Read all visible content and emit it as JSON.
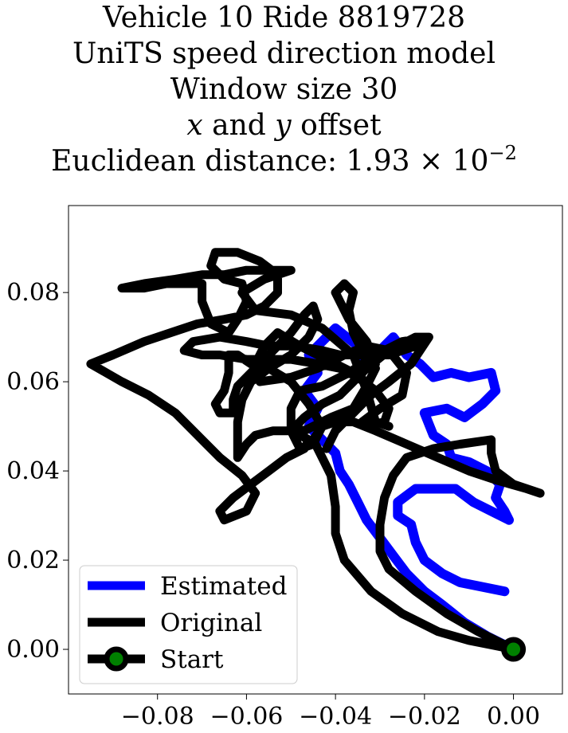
{
  "title": {
    "line1": "Vehicle 10 Ride 8819728",
    "line2": "UniTS speed direction model",
    "line3": "Window size 30",
    "line4_x": "x",
    "line4_and": " and ",
    "line4_y": "y",
    "line4_rest": " offset",
    "line5_prefix": "Euclidean distance: 1.93",
    "line5_times": " × 10",
    "line5_exp": "−2"
  },
  "chart_data": {
    "type": "line",
    "xlim": [
      -0.1,
      0.011
    ],
    "ylim": [
      -0.01,
      0.0995
    ],
    "xticks": [
      -0.08,
      -0.06,
      -0.04,
      -0.02,
      0.0
    ],
    "xtick_labels": [
      "−0.08",
      "−0.06",
      "−0.04",
      "−0.02",
      "0.00"
    ],
    "yticks": [
      0.0,
      0.02,
      0.04,
      0.06,
      0.08
    ],
    "ytick_labels": [
      "0.00",
      "0.02",
      "0.04",
      "0.06",
      "0.08"
    ],
    "grid": false,
    "legend_position": "lower-left",
    "legend": [
      "Estimated",
      "Original",
      "Start"
    ],
    "series": [
      {
        "name": "Estimated",
        "color": "#0000ff",
        "points": [
          [
            0.0,
            0.0
          ],
          [
            -0.006,
            0.003
          ],
          [
            -0.011,
            0.006
          ],
          [
            -0.016,
            0.01
          ],
          [
            -0.02,
            0.013
          ],
          [
            -0.024,
            0.017
          ],
          [
            -0.027,
            0.021
          ],
          [
            -0.03,
            0.025
          ],
          [
            -0.033,
            0.029
          ],
          [
            -0.035,
            0.033
          ],
          [
            -0.037,
            0.037
          ],
          [
            -0.039,
            0.04
          ],
          [
            -0.04,
            0.044
          ],
          [
            -0.043,
            0.047
          ],
          [
            -0.046,
            0.05
          ],
          [
            -0.044,
            0.054
          ],
          [
            -0.047,
            0.058
          ],
          [
            -0.044,
            0.062
          ],
          [
            -0.046,
            0.066
          ],
          [
            -0.04,
            0.072
          ],
          [
            -0.035,
            0.068
          ],
          [
            -0.033,
            0.063
          ],
          [
            -0.03,
            0.067
          ],
          [
            -0.027,
            0.07
          ],
          [
            -0.024,
            0.066
          ],
          [
            -0.021,
            0.064
          ],
          [
            -0.018,
            0.061
          ],
          [
            -0.014,
            0.062
          ],
          [
            -0.01,
            0.061
          ],
          [
            -0.005,
            0.062
          ],
          [
            -0.004,
            0.058
          ],
          [
            -0.007,
            0.055
          ],
          [
            -0.011,
            0.052
          ],
          [
            -0.015,
            0.054
          ],
          [
            -0.02,
            0.053
          ],
          [
            -0.018,
            0.048
          ],
          [
            -0.015,
            0.046
          ],
          [
            -0.014,
            0.043
          ],
          [
            -0.01,
            0.042
          ],
          [
            -0.006,
            0.04
          ],
          [
            -0.003,
            0.037
          ],
          [
            -0.004,
            0.034
          ],
          [
            -0.002,
            0.031
          ],
          [
            -0.001,
            0.029
          ],
          [
            -0.005,
            0.031
          ],
          [
            -0.009,
            0.033
          ],
          [
            -0.013,
            0.036
          ],
          [
            -0.018,
            0.036
          ],
          [
            -0.022,
            0.036
          ],
          [
            -0.026,
            0.033
          ],
          [
            -0.026,
            0.03
          ],
          [
            -0.023,
            0.028
          ],
          [
            -0.022,
            0.024
          ],
          [
            -0.02,
            0.02
          ],
          [
            -0.016,
            0.017
          ],
          [
            -0.012,
            0.015
          ],
          [
            -0.007,
            0.014
          ],
          [
            -0.002,
            0.013
          ]
        ]
      },
      {
        "name": "Original",
        "color": "#000000",
        "points": [
          [
            0.0,
            0.0
          ],
          [
            -0.008,
            0.004
          ],
          [
            -0.015,
            0.008
          ],
          [
            -0.022,
            0.013
          ],
          [
            -0.028,
            0.018
          ],
          [
            -0.03,
            0.022
          ],
          [
            -0.03,
            0.028
          ],
          [
            -0.029,
            0.034
          ],
          [
            -0.027,
            0.039
          ],
          [
            -0.024,
            0.043
          ],
          [
            -0.018,
            0.045
          ],
          [
            -0.012,
            0.046
          ],
          [
            -0.005,
            0.047
          ],
          [
            -0.005,
            0.044
          ],
          [
            -0.004,
            0.04
          ],
          [
            0.0,
            0.037
          ],
          [
            0.006,
            0.035
          ],
          [
            0.003,
            0.036
          ],
          [
            -0.004,
            0.038
          ],
          [
            -0.01,
            0.04
          ],
          [
            -0.017,
            0.043
          ],
          [
            -0.024,
            0.046
          ],
          [
            -0.031,
            0.049
          ],
          [
            -0.036,
            0.051
          ],
          [
            -0.04,
            0.051
          ],
          [
            -0.043,
            0.05
          ],
          [
            -0.045,
            0.047
          ],
          [
            -0.043,
            0.043
          ],
          [
            -0.041,
            0.039
          ],
          [
            -0.04,
            0.032
          ],
          [
            -0.04,
            0.026
          ],
          [
            -0.038,
            0.02
          ],
          [
            -0.032,
            0.013
          ],
          [
            -0.025,
            0.008
          ],
          [
            -0.017,
            0.004
          ],
          [
            -0.01,
            0.002
          ],
          [
            -0.005,
            0.001
          ],
          [
            0.0,
            0.0
          ]
        ]
      },
      {
        "name": "Original",
        "color": "#000000",
        "points": [
          [
            -0.042,
            0.045
          ],
          [
            -0.04,
            0.049
          ],
          [
            -0.036,
            0.053
          ],
          [
            -0.032,
            0.057
          ],
          [
            -0.028,
            0.06
          ],
          [
            -0.023,
            0.064
          ],
          [
            -0.019,
            0.07
          ],
          [
            -0.025,
            0.069
          ],
          [
            -0.031,
            0.066
          ],
          [
            -0.037,
            0.062
          ],
          [
            -0.043,
            0.059
          ],
          [
            -0.048,
            0.058
          ],
          [
            -0.05,
            0.054
          ],
          [
            -0.05,
            0.05
          ],
          [
            -0.047,
            0.049
          ],
          [
            -0.041,
            0.052
          ],
          [
            -0.036,
            0.054
          ],
          [
            -0.033,
            0.059
          ],
          [
            -0.031,
            0.063
          ],
          [
            -0.034,
            0.067
          ],
          [
            -0.036,
            0.071
          ],
          [
            -0.037,
            0.076
          ],
          [
            -0.036,
            0.08
          ],
          [
            -0.038,
            0.082
          ],
          [
            -0.04,
            0.08
          ],
          [
            -0.037,
            0.074
          ],
          [
            -0.033,
            0.069
          ],
          [
            -0.031,
            0.064
          ],
          [
            -0.036,
            0.062
          ],
          [
            -0.042,
            0.065
          ],
          [
            -0.048,
            0.068
          ],
          [
            -0.053,
            0.071
          ],
          [
            -0.056,
            0.068
          ],
          [
            -0.058,
            0.064
          ],
          [
            -0.057,
            0.06
          ],
          [
            -0.05,
            0.061
          ],
          [
            -0.044,
            0.063
          ],
          [
            -0.038,
            0.066
          ],
          [
            -0.033,
            0.068
          ],
          [
            -0.028,
            0.067
          ],
          [
            -0.024,
            0.062
          ],
          [
            -0.025,
            0.057
          ],
          [
            -0.03,
            0.054
          ],
          [
            -0.034,
            0.051
          ],
          [
            -0.033,
            0.05
          ],
          [
            -0.029,
            0.051
          ],
          [
            -0.028,
            0.054
          ],
          [
            -0.031,
            0.058
          ],
          [
            -0.035,
            0.061
          ],
          [
            -0.039,
            0.063
          ],
          [
            -0.044,
            0.064
          ],
          [
            -0.05,
            0.065
          ],
          [
            -0.055,
            0.065
          ],
          [
            -0.06,
            0.065
          ],
          [
            -0.066,
            0.066
          ],
          [
            -0.07,
            0.066
          ],
          [
            -0.074,
            0.067
          ],
          [
            -0.072,
            0.069
          ],
          [
            -0.066,
            0.07
          ],
          [
            -0.06,
            0.069
          ],
          [
            -0.055,
            0.068
          ],
          [
            -0.049,
            0.068
          ],
          [
            -0.043,
            0.067
          ],
          [
            -0.039,
            0.066
          ],
          [
            -0.035,
            0.066
          ],
          [
            -0.031,
            0.066
          ],
          [
            -0.028,
            0.066
          ],
          [
            -0.025,
            0.067
          ],
          [
            -0.022,
            0.068
          ],
          [
            -0.019,
            0.07
          ],
          [
            -0.022,
            0.07
          ],
          [
            -0.028,
            0.067
          ],
          [
            -0.033,
            0.063
          ],
          [
            -0.036,
            0.06
          ],
          [
            -0.039,
            0.057
          ],
          [
            -0.043,
            0.055
          ],
          [
            -0.047,
            0.052
          ],
          [
            -0.05,
            0.049
          ],
          [
            -0.048,
            0.045
          ],
          [
            -0.045,
            0.046
          ],
          [
            -0.043,
            0.05
          ],
          [
            -0.046,
            0.055
          ],
          [
            -0.05,
            0.06
          ],
          [
            -0.055,
            0.063
          ],
          [
            -0.059,
            0.064
          ],
          [
            -0.062,
            0.066
          ],
          [
            -0.064,
            0.066
          ],
          [
            -0.064,
            0.062
          ],
          [
            -0.065,
            0.058
          ],
          [
            -0.067,
            0.055
          ],
          [
            -0.066,
            0.053
          ],
          [
            -0.063,
            0.053
          ],
          [
            -0.063,
            0.056
          ],
          [
            -0.062,
            0.059
          ],
          [
            -0.059,
            0.062
          ],
          [
            -0.055,
            0.066
          ],
          [
            -0.05,
            0.071
          ],
          [
            -0.047,
            0.075
          ],
          [
            -0.045,
            0.077
          ],
          [
            -0.044,
            0.074
          ],
          [
            -0.046,
            0.07
          ],
          [
            -0.05,
            0.066
          ],
          [
            -0.055,
            0.063
          ],
          [
            -0.059,
            0.06
          ],
          [
            -0.061,
            0.056
          ],
          [
            -0.062,
            0.051
          ],
          [
            -0.062,
            0.046
          ],
          [
            -0.062,
            0.043
          ],
          [
            -0.06,
            0.046
          ],
          [
            -0.058,
            0.048
          ],
          [
            -0.054,
            0.049
          ],
          [
            -0.05,
            0.049
          ],
          [
            -0.046,
            0.047
          ],
          [
            -0.047,
            0.045
          ],
          [
            -0.051,
            0.043
          ],
          [
            -0.055,
            0.04
          ],
          [
            -0.059,
            0.037
          ],
          [
            -0.063,
            0.034
          ],
          [
            -0.066,
            0.031
          ],
          [
            -0.065,
            0.029
          ],
          [
            -0.06,
            0.031
          ],
          [
            -0.058,
            0.035
          ],
          [
            -0.061,
            0.039
          ],
          [
            -0.066,
            0.043
          ],
          [
            -0.071,
            0.048
          ],
          [
            -0.076,
            0.053
          ],
          [
            -0.082,
            0.057
          ],
          [
            -0.088,
            0.06
          ],
          [
            -0.095,
            0.064
          ],
          [
            -0.09,
            0.066
          ],
          [
            -0.083,
            0.069
          ],
          [
            -0.077,
            0.071
          ],
          [
            -0.071,
            0.073
          ],
          [
            -0.065,
            0.074
          ],
          [
            -0.06,
            0.075
          ],
          [
            -0.056,
            0.077
          ],
          [
            -0.053,
            0.08
          ],
          [
            -0.053,
            0.084
          ],
          [
            -0.057,
            0.087
          ],
          [
            -0.062,
            0.089
          ],
          [
            -0.067,
            0.089
          ],
          [
            -0.068,
            0.086
          ],
          [
            -0.065,
            0.083
          ],
          [
            -0.061,
            0.082
          ],
          [
            -0.06,
            0.078
          ],
          [
            -0.062,
            0.074
          ],
          [
            -0.064,
            0.071
          ],
          [
            -0.068,
            0.073
          ],
          [
            -0.07,
            0.078
          ],
          [
            -0.07,
            0.082
          ],
          [
            -0.073,
            0.082
          ],
          [
            -0.078,
            0.082
          ],
          [
            -0.083,
            0.081
          ],
          [
            -0.088,
            0.081
          ],
          [
            -0.083,
            0.082
          ],
          [
            -0.076,
            0.083
          ],
          [
            -0.07,
            0.084
          ],
          [
            -0.065,
            0.084
          ],
          [
            -0.06,
            0.085
          ],
          [
            -0.055,
            0.085
          ],
          [
            -0.05,
            0.085
          ],
          [
            -0.056,
            0.083
          ],
          [
            -0.061,
            0.08
          ],
          [
            -0.058,
            0.076
          ],
          [
            -0.05,
            0.075
          ],
          [
            -0.043,
            0.072
          ],
          [
            -0.036,
            0.066
          ],
          [
            -0.033,
            0.058
          ],
          [
            -0.031,
            0.051
          ],
          [
            -0.028,
            0.05
          ]
        ]
      }
    ],
    "start": {
      "x": 0.0,
      "y": 0.0,
      "marker_face": "#008000",
      "marker_edge": "#000000"
    }
  }
}
